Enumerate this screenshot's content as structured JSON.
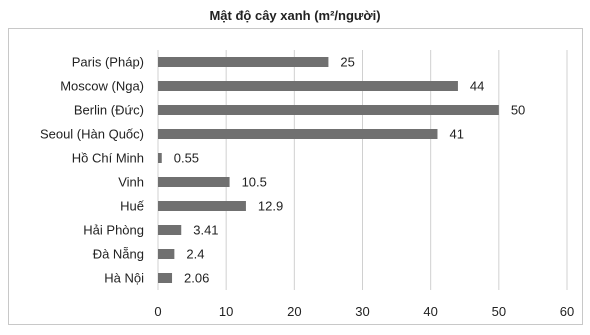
{
  "chart_data": {
    "type": "bar",
    "orientation": "horizontal",
    "title": "Mật độ cây xanh (m²/người)",
    "categories": [
      "Paris (Pháp)",
      "Moscow (Nga)",
      "Berlin (Đức)",
      "Seoul (Hàn Quốc)",
      "Hồ Chí Minh",
      "Vinh",
      "Huế",
      "Hải Phòng",
      "Đà Nẵng",
      "Hà Nội"
    ],
    "values": [
      25,
      44,
      50,
      41,
      0.55,
      10.5,
      12.9,
      3.41,
      2.4,
      2.06
    ],
    "value_labels": [
      "25",
      "44",
      "50",
      "41",
      "0.55",
      "10.5",
      "12.9",
      "3.41",
      "2.4",
      "2.06"
    ],
    "xlim": [
      0,
      60
    ],
    "xticks": [
      0,
      10,
      20,
      30,
      40,
      50,
      60
    ],
    "grid": true,
    "bar_color": "#707070",
    "grid_color": "#d0d0d0"
  }
}
